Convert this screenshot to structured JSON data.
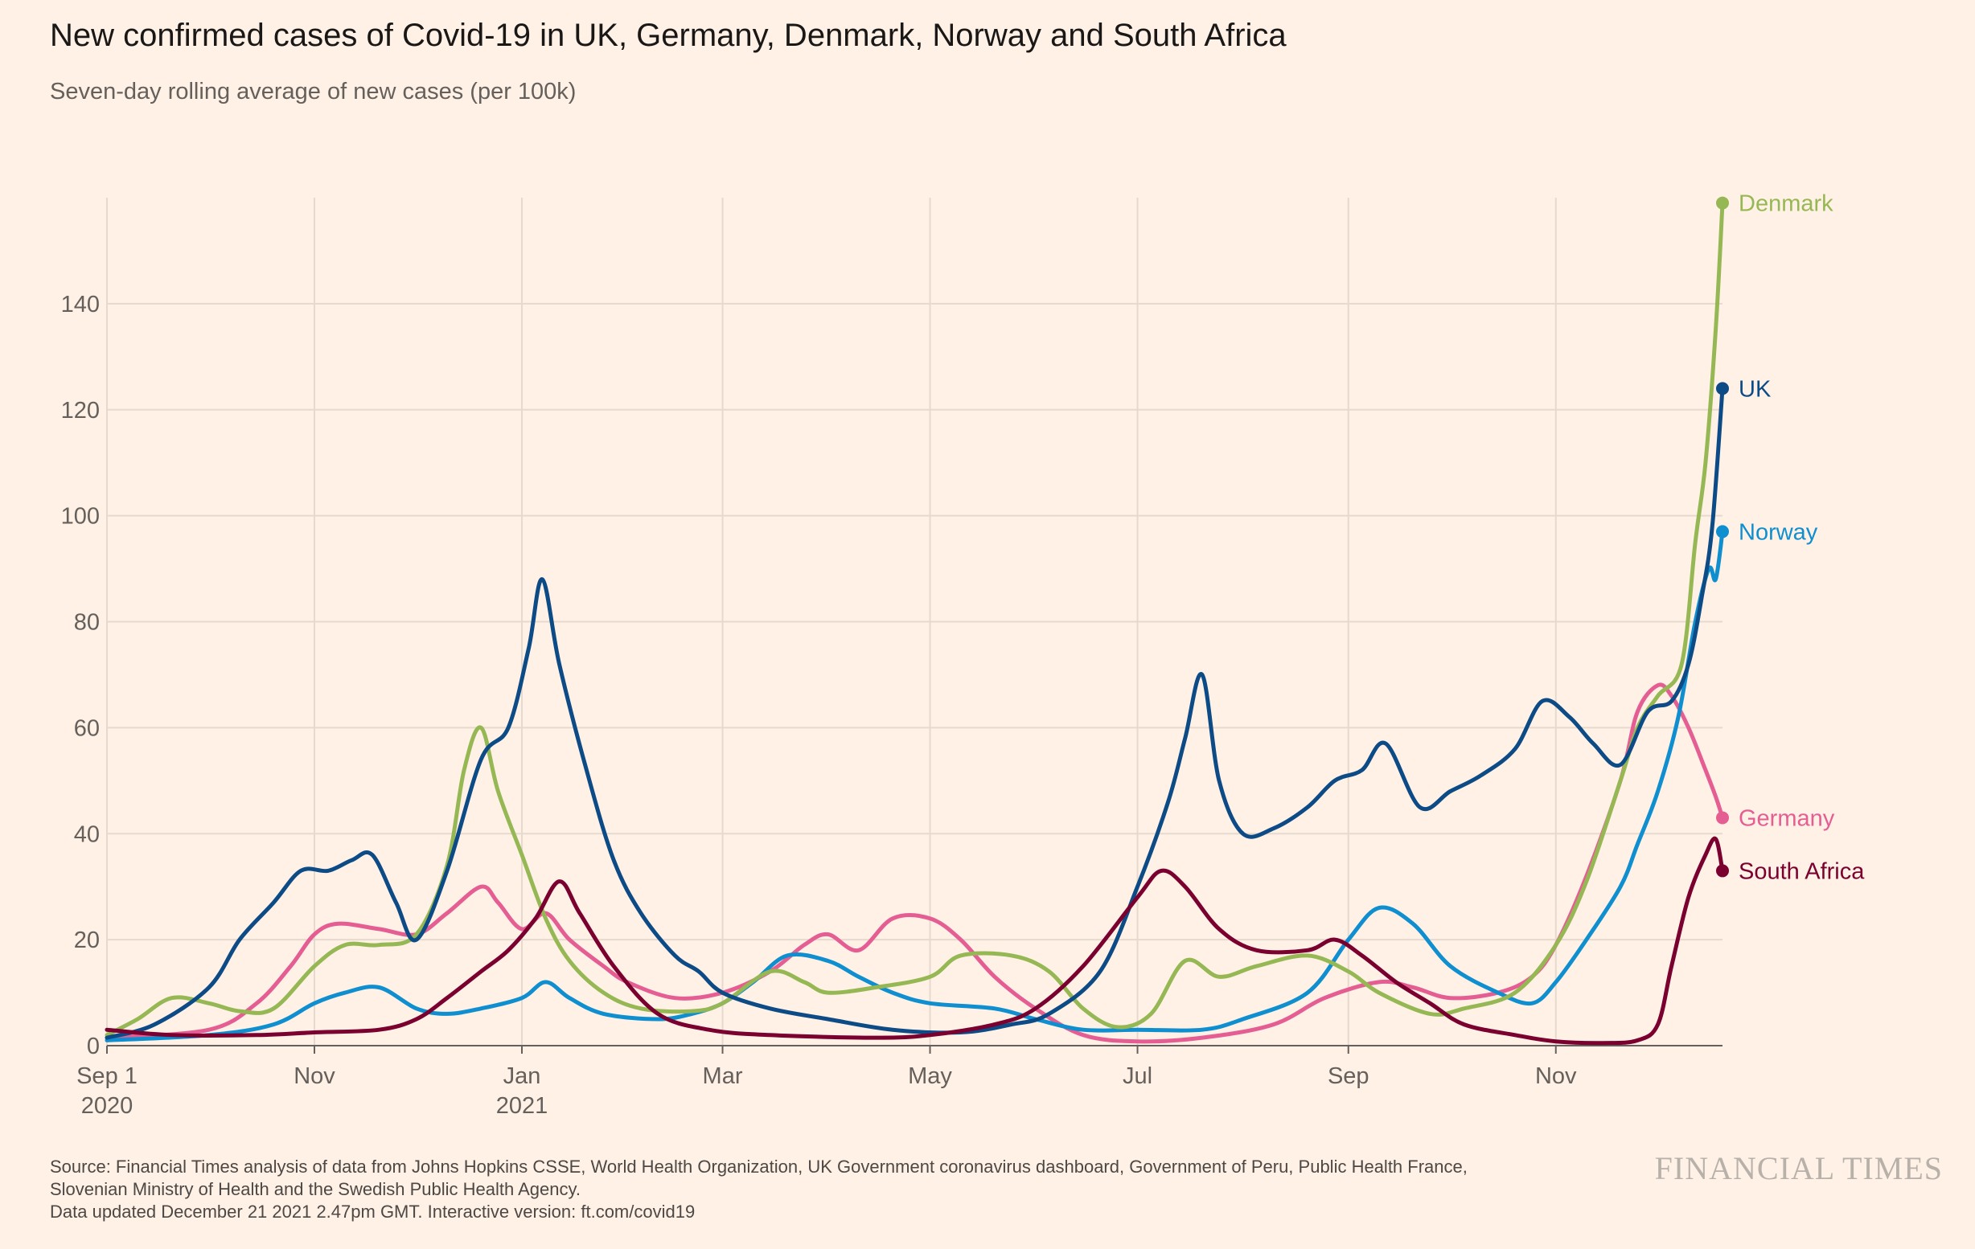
{
  "title": "New confirmed cases of Covid-19 in UK, Germany, Denmark, Norway and South Africa",
  "subtitle": "Seven-day rolling average of new cases (per 100k)",
  "source": {
    "line1": "Source: Financial Times analysis of data from Johns Hopkins CSSE, World Health Organization, UK Government coronavirus dashboard, Government of Peru, Public Health France,",
    "line2": "Slovenian Ministry of Health and the Swedish Public Health Agency.",
    "line3": "Data updated December 21 2021 2.47pm GMT. Interactive version: ft.com/covid19"
  },
  "brand": "FINANCIAL TIMES",
  "chart_data": {
    "type": "line",
    "grid": true,
    "ylim": [
      0,
      160
    ],
    "yticks": [
      0,
      20,
      40,
      60,
      80,
      100,
      120,
      140
    ],
    "xlim": [
      "2020-09-01",
      "2021-12-20"
    ],
    "xticks": [
      {
        "date": "2020-09-01",
        "label": "Sep 1",
        "sublabel": "2020"
      },
      {
        "date": "2020-11-01",
        "label": "Nov",
        "sublabel": ""
      },
      {
        "date": "2021-01-01",
        "label": "Jan",
        "sublabel": "2021"
      },
      {
        "date": "2021-03-01",
        "label": "Mar",
        "sublabel": ""
      },
      {
        "date": "2021-05-01",
        "label": "May",
        "sublabel": ""
      },
      {
        "date": "2021-07-01",
        "label": "Jul",
        "sublabel": ""
      },
      {
        "date": "2021-09-01",
        "label": "Sep",
        "sublabel": ""
      },
      {
        "date": "2021-11-01",
        "label": "Nov",
        "sublabel": ""
      }
    ],
    "legend_placement": "line-end labels",
    "series": [
      {
        "name": "Germany",
        "color": "#e55e93",
        "points": [
          [
            "2020-09-01",
            1.5
          ],
          [
            "2020-10-01",
            3
          ],
          [
            "2020-10-15",
            8
          ],
          [
            "2020-10-25",
            15
          ],
          [
            "2020-11-01",
            21
          ],
          [
            "2020-11-08",
            23
          ],
          [
            "2020-11-20",
            22
          ],
          [
            "2020-12-01",
            21
          ],
          [
            "2020-12-10",
            25
          ],
          [
            "2020-12-20",
            30
          ],
          [
            "2020-12-25",
            27
          ],
          [
            "2021-01-01",
            22
          ],
          [
            "2021-01-08",
            25
          ],
          [
            "2021-01-15",
            20
          ],
          [
            "2021-01-25",
            15
          ],
          [
            "2021-02-01",
            12
          ],
          [
            "2021-02-15",
            9
          ],
          [
            "2021-03-01",
            10
          ],
          [
            "2021-03-15",
            14
          ],
          [
            "2021-03-25",
            19
          ],
          [
            "2021-04-01",
            21
          ],
          [
            "2021-04-10",
            18
          ],
          [
            "2021-04-20",
            24
          ],
          [
            "2021-05-01",
            24
          ],
          [
            "2021-05-10",
            20
          ],
          [
            "2021-05-20",
            13
          ],
          [
            "2021-06-01",
            7
          ],
          [
            "2021-06-15",
            2
          ],
          [
            "2021-07-01",
            0.8
          ],
          [
            "2021-07-20",
            1.5
          ],
          [
            "2021-08-10",
            4
          ],
          [
            "2021-08-25",
            9
          ],
          [
            "2021-09-10",
            12
          ],
          [
            "2021-09-20",
            11
          ],
          [
            "2021-10-01",
            9
          ],
          [
            "2021-10-15",
            10
          ],
          [
            "2021-10-25",
            13
          ],
          [
            "2021-11-01",
            19
          ],
          [
            "2021-11-10",
            32
          ],
          [
            "2021-11-20",
            50
          ],
          [
            "2021-11-25",
            63
          ],
          [
            "2021-12-01",
            68
          ],
          [
            "2021-12-05",
            66
          ],
          [
            "2021-12-10",
            60
          ],
          [
            "2021-12-15",
            52
          ],
          [
            "2021-12-18",
            47
          ],
          [
            "2021-12-20",
            43
          ]
        ]
      },
      {
        "name": "Norway",
        "color": "#0f8fcf",
        "points": [
          [
            "2020-09-01",
            1
          ],
          [
            "2020-10-01",
            2
          ],
          [
            "2020-10-20",
            4
          ],
          [
            "2020-11-01",
            8
          ],
          [
            "2020-11-10",
            10
          ],
          [
            "2020-11-20",
            11
          ],
          [
            "2020-12-01",
            7
          ],
          [
            "2020-12-10",
            6
          ],
          [
            "2020-12-20",
            7
          ],
          [
            "2021-01-01",
            9
          ],
          [
            "2021-01-08",
            12
          ],
          [
            "2021-01-15",
            9
          ],
          [
            "2021-01-25",
            6
          ],
          [
            "2021-02-10",
            5
          ],
          [
            "2021-02-20",
            6
          ],
          [
            "2021-03-01",
            8
          ],
          [
            "2021-03-10",
            12
          ],
          [
            "2021-03-20",
            17
          ],
          [
            "2021-04-01",
            16
          ],
          [
            "2021-04-10",
            13
          ],
          [
            "2021-04-20",
            10
          ],
          [
            "2021-05-01",
            8
          ],
          [
            "2021-05-20",
            7
          ],
          [
            "2021-06-01",
            5
          ],
          [
            "2021-06-15",
            3
          ],
          [
            "2021-07-01",
            3
          ],
          [
            "2021-07-20",
            3
          ],
          [
            "2021-08-01",
            5
          ],
          [
            "2021-08-20",
            10
          ],
          [
            "2021-09-01",
            20
          ],
          [
            "2021-09-10",
            26
          ],
          [
            "2021-09-20",
            23
          ],
          [
            "2021-10-01",
            15
          ],
          [
            "2021-10-15",
            10
          ],
          [
            "2021-10-25",
            8
          ],
          [
            "2021-11-01",
            12
          ],
          [
            "2021-11-10",
            20
          ],
          [
            "2021-11-20",
            30
          ],
          [
            "2021-11-25",
            38
          ],
          [
            "2021-12-01",
            48
          ],
          [
            "2021-12-07",
            62
          ],
          [
            "2021-12-12",
            80
          ],
          [
            "2021-12-16",
            90
          ],
          [
            "2021-12-18",
            88
          ],
          [
            "2021-12-20",
            97
          ]
        ]
      },
      {
        "name": "Denmark",
        "color": "#96b854",
        "points": [
          [
            "2020-09-01",
            2
          ],
          [
            "2020-09-10",
            5
          ],
          [
            "2020-09-20",
            9
          ],
          [
            "2020-10-01",
            8
          ],
          [
            "2020-10-10",
            6.5
          ],
          [
            "2020-10-20",
            7
          ],
          [
            "2020-11-01",
            15
          ],
          [
            "2020-11-10",
            19
          ],
          [
            "2020-11-20",
            19
          ],
          [
            "2020-12-01",
            21
          ],
          [
            "2020-12-10",
            34
          ],
          [
            "2020-12-15",
            52
          ],
          [
            "2020-12-20",
            60
          ],
          [
            "2020-12-25",
            48
          ],
          [
            "2021-01-01",
            36
          ],
          [
            "2021-01-08",
            24
          ],
          [
            "2021-01-15",
            16
          ],
          [
            "2021-01-25",
            10
          ],
          [
            "2021-02-05",
            7
          ],
          [
            "2021-02-20",
            6.5
          ],
          [
            "2021-03-01",
            8
          ],
          [
            "2021-03-15",
            14
          ],
          [
            "2021-03-25",
            12
          ],
          [
            "2021-04-01",
            10
          ],
          [
            "2021-04-15",
            11
          ],
          [
            "2021-05-01",
            13
          ],
          [
            "2021-05-10",
            17
          ],
          [
            "2021-05-25",
            17
          ],
          [
            "2021-06-05",
            14
          ],
          [
            "2021-06-15",
            7
          ],
          [
            "2021-06-25",
            3.5
          ],
          [
            "2021-07-05",
            6
          ],
          [
            "2021-07-15",
            16
          ],
          [
            "2021-07-25",
            13
          ],
          [
            "2021-08-05",
            15
          ],
          [
            "2021-08-20",
            17
          ],
          [
            "2021-09-01",
            14
          ],
          [
            "2021-09-10",
            10
          ],
          [
            "2021-09-25",
            6
          ],
          [
            "2021-10-05",
            7
          ],
          [
            "2021-10-20",
            10
          ],
          [
            "2021-11-01",
            19
          ],
          [
            "2021-11-10",
            31
          ],
          [
            "2021-11-20",
            50
          ],
          [
            "2021-11-25",
            60
          ],
          [
            "2021-12-01",
            66
          ],
          [
            "2021-12-08",
            72
          ],
          [
            "2021-12-12",
            95
          ],
          [
            "2021-12-15",
            110
          ],
          [
            "2021-12-18",
            135
          ],
          [
            "2021-12-20",
            159
          ]
        ]
      },
      {
        "name": "UK",
        "color": "#0d4b86",
        "points": [
          [
            "2020-09-01",
            1.5
          ],
          [
            "2020-09-15",
            4
          ],
          [
            "2020-10-01",
            11
          ],
          [
            "2020-10-10",
            20
          ],
          [
            "2020-10-20",
            27
          ],
          [
            "2020-10-28",
            33
          ],
          [
            "2020-11-05",
            33
          ],
          [
            "2020-11-12",
            35
          ],
          [
            "2020-11-18",
            36
          ],
          [
            "2020-11-25",
            27
          ],
          [
            "2020-12-01",
            20
          ],
          [
            "2020-12-10",
            33
          ],
          [
            "2020-12-20",
            54
          ],
          [
            "2020-12-28",
            60
          ],
          [
            "2021-01-03",
            75
          ],
          [
            "2021-01-07",
            88
          ],
          [
            "2021-01-12",
            72
          ],
          [
            "2021-01-20",
            52
          ],
          [
            "2021-01-28",
            35
          ],
          [
            "2021-02-05",
            25
          ],
          [
            "2021-02-15",
            17
          ],
          [
            "2021-02-22",
            14
          ],
          [
            "2021-03-01",
            10
          ],
          [
            "2021-03-15",
            7
          ],
          [
            "2021-04-01",
            5
          ],
          [
            "2021-04-20",
            3
          ],
          [
            "2021-05-10",
            2.5
          ],
          [
            "2021-05-25",
            4
          ],
          [
            "2021-06-05",
            6
          ],
          [
            "2021-06-20",
            14
          ],
          [
            "2021-07-01",
            30
          ],
          [
            "2021-07-10",
            46
          ],
          [
            "2021-07-15",
            58
          ],
          [
            "2021-07-20",
            70
          ],
          [
            "2021-07-25",
            50
          ],
          [
            "2021-08-01",
            40
          ],
          [
            "2021-08-10",
            41
          ],
          [
            "2021-08-20",
            45
          ],
          [
            "2021-08-28",
            50
          ],
          [
            "2021-09-05",
            52
          ],
          [
            "2021-09-12",
            57
          ],
          [
            "2021-09-22",
            45
          ],
          [
            "2021-10-01",
            48
          ],
          [
            "2021-10-10",
            51
          ],
          [
            "2021-10-20",
            56
          ],
          [
            "2021-10-28",
            65
          ],
          [
            "2021-11-05",
            62
          ],
          [
            "2021-11-12",
            57
          ],
          [
            "2021-11-20",
            53
          ],
          [
            "2021-11-28",
            63
          ],
          [
            "2021-12-05",
            65
          ],
          [
            "2021-12-10",
            72
          ],
          [
            "2021-12-14",
            85
          ],
          [
            "2021-12-17",
            98
          ],
          [
            "2021-12-20",
            124
          ]
        ]
      },
      {
        "name": "South Africa",
        "color": "#7a002f",
        "points": [
          [
            "2020-09-01",
            3
          ],
          [
            "2020-09-20",
            2
          ],
          [
            "2020-10-15",
            2
          ],
          [
            "2020-11-01",
            2.5
          ],
          [
            "2020-11-20",
            3
          ],
          [
            "2020-12-01",
            5
          ],
          [
            "2020-12-10",
            9
          ],
          [
            "2020-12-20",
            14
          ],
          [
            "2020-12-28",
            18
          ],
          [
            "2021-01-05",
            24
          ],
          [
            "2021-01-12",
            31
          ],
          [
            "2021-01-18",
            25
          ],
          [
            "2021-01-28",
            15
          ],
          [
            "2021-02-10",
            6
          ],
          [
            "2021-02-25",
            3
          ],
          [
            "2021-03-15",
            2
          ],
          [
            "2021-04-15",
            1.5
          ],
          [
            "2021-05-01",
            2
          ],
          [
            "2021-05-20",
            4
          ],
          [
            "2021-06-01",
            7
          ],
          [
            "2021-06-15",
            15
          ],
          [
            "2021-07-01",
            28
          ],
          [
            "2021-07-08",
            33
          ],
          [
            "2021-07-15",
            30
          ],
          [
            "2021-07-25",
            22
          ],
          [
            "2021-08-05",
            18
          ],
          [
            "2021-08-20",
            18
          ],
          [
            "2021-08-28",
            20
          ],
          [
            "2021-09-05",
            17
          ],
          [
            "2021-09-15",
            12
          ],
          [
            "2021-09-25",
            8
          ],
          [
            "2021-10-05",
            4
          ],
          [
            "2021-10-20",
            2
          ],
          [
            "2021-11-01",
            0.8
          ],
          [
            "2021-11-15",
            0.5
          ],
          [
            "2021-11-25",
            1
          ],
          [
            "2021-12-01",
            4
          ],
          [
            "2021-12-05",
            15
          ],
          [
            "2021-12-10",
            28
          ],
          [
            "2021-12-15",
            36
          ],
          [
            "2021-12-18",
            39
          ],
          [
            "2021-12-20",
            33
          ]
        ]
      }
    ],
    "end_labels": [
      {
        "name": "Denmark",
        "value": 159
      },
      {
        "name": "UK",
        "value": 124
      },
      {
        "name": "Norway",
        "value": 97
      },
      {
        "name": "Germany",
        "value": 43
      },
      {
        "name": "South Africa",
        "value": 33
      }
    ]
  }
}
